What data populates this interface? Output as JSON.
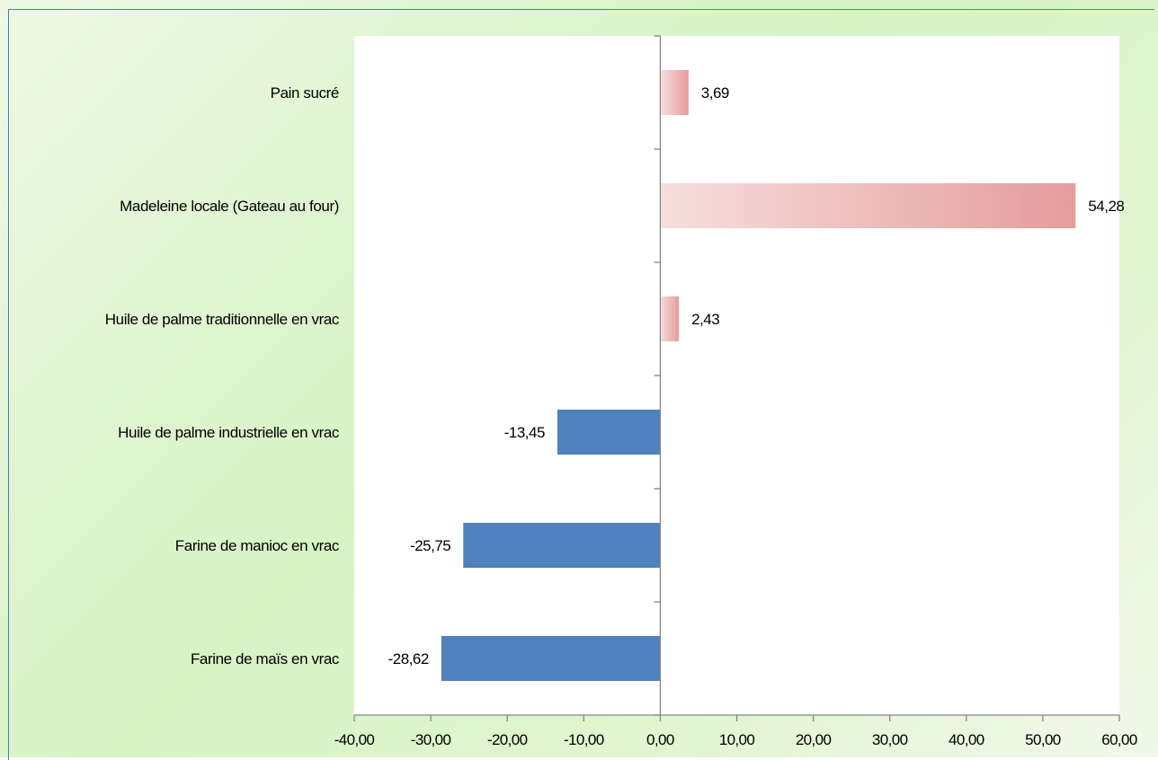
{
  "chart_data": {
    "type": "bar",
    "orientation": "horizontal",
    "categories": [
      "Pain sucré",
      "Madeleine locale (Gateau au four)",
      "Huile de palme traditionnelle  en vrac ",
      "Huile de palme industrielle en vrac",
      "Farine de manioc en vrac",
      "Farine de maïs en vrac"
    ],
    "values": [
      3.69,
      54.28,
      2.43,
      -13.45,
      -25.75,
      -28.62
    ],
    "value_labels": [
      "3,69",
      "54,28",
      "2,43",
      "-13,45",
      "-25,75",
      "-28,62"
    ],
    "xlim": [
      -40,
      60
    ],
    "x_ticks": [
      -40,
      -30,
      -20,
      -10,
      0,
      10,
      20,
      30,
      40,
      50,
      60
    ],
    "x_tick_labels": [
      "-40,00",
      "-30,00",
      "-20,00",
      "-10,00",
      "0,00",
      "10,00",
      "20,00",
      "30,00",
      "40,00",
      "50,00",
      "60,00"
    ],
    "title": "",
    "xlabel": "",
    "ylabel": "",
    "grid": false,
    "legend": "none",
    "colors": {
      "positive_start": "#f6dede",
      "positive_end": "#e59c9c",
      "negative": "#4f81bd",
      "axis": "#868686",
      "plot_background": "#ffffff",
      "border": "#4a7ebb"
    }
  }
}
